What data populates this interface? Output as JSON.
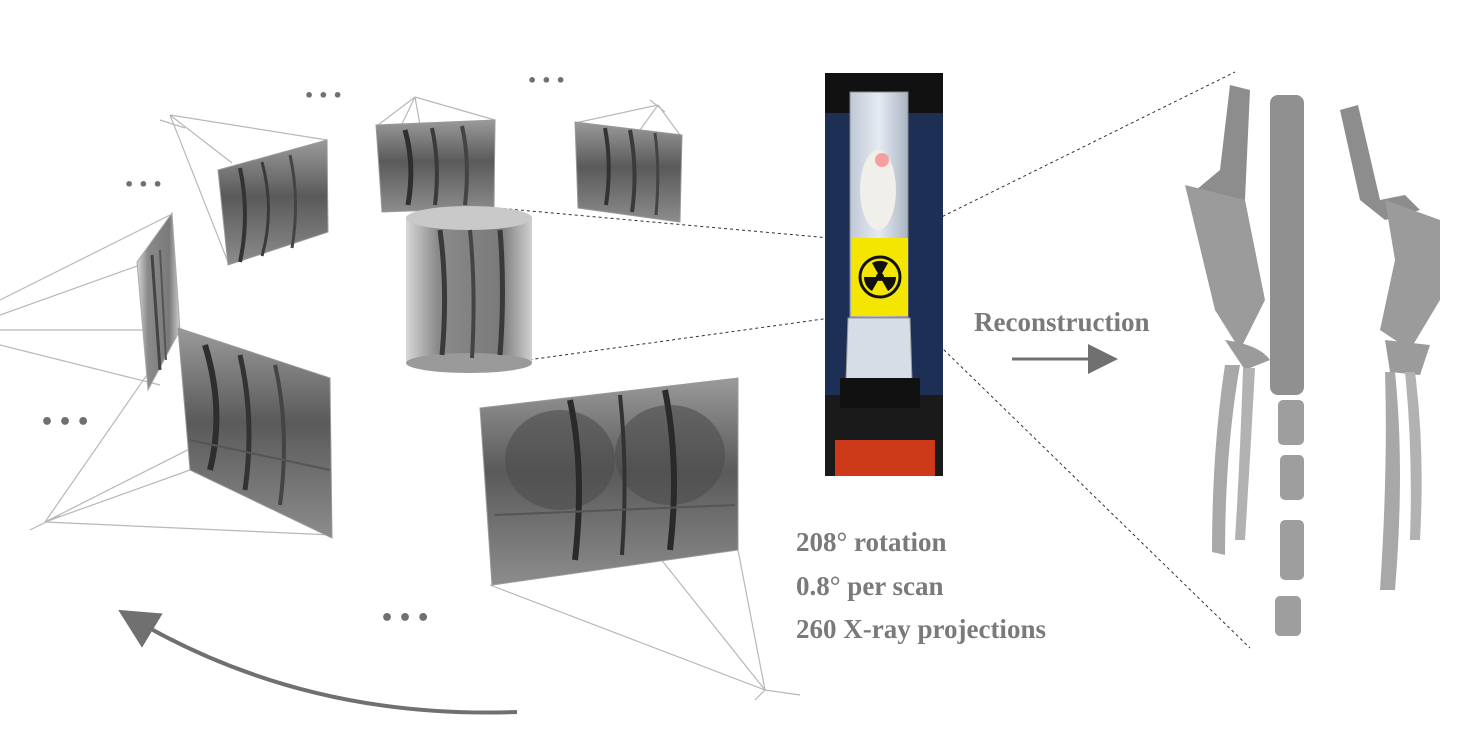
{
  "labels": {
    "reconstruction": "Reconstruction",
    "ellipsis": "•••"
  },
  "stats": [
    "208° rotation",
    "0.8° per scan",
    "260 X-ray projections"
  ],
  "colors": {
    "text": "#7a7a7a",
    "ray_lines": "#b5b5b5",
    "arrow": "#707070",
    "hazard_yellow": "#f4e600",
    "hazard_black": "#111111",
    "scanner_bg": "#1d2f55"
  },
  "icons": {
    "radiation": "radiation-trefoil-icon",
    "arrow": "right-arrow-icon",
    "rotation": "curved-rotation-arrow-icon"
  }
}
